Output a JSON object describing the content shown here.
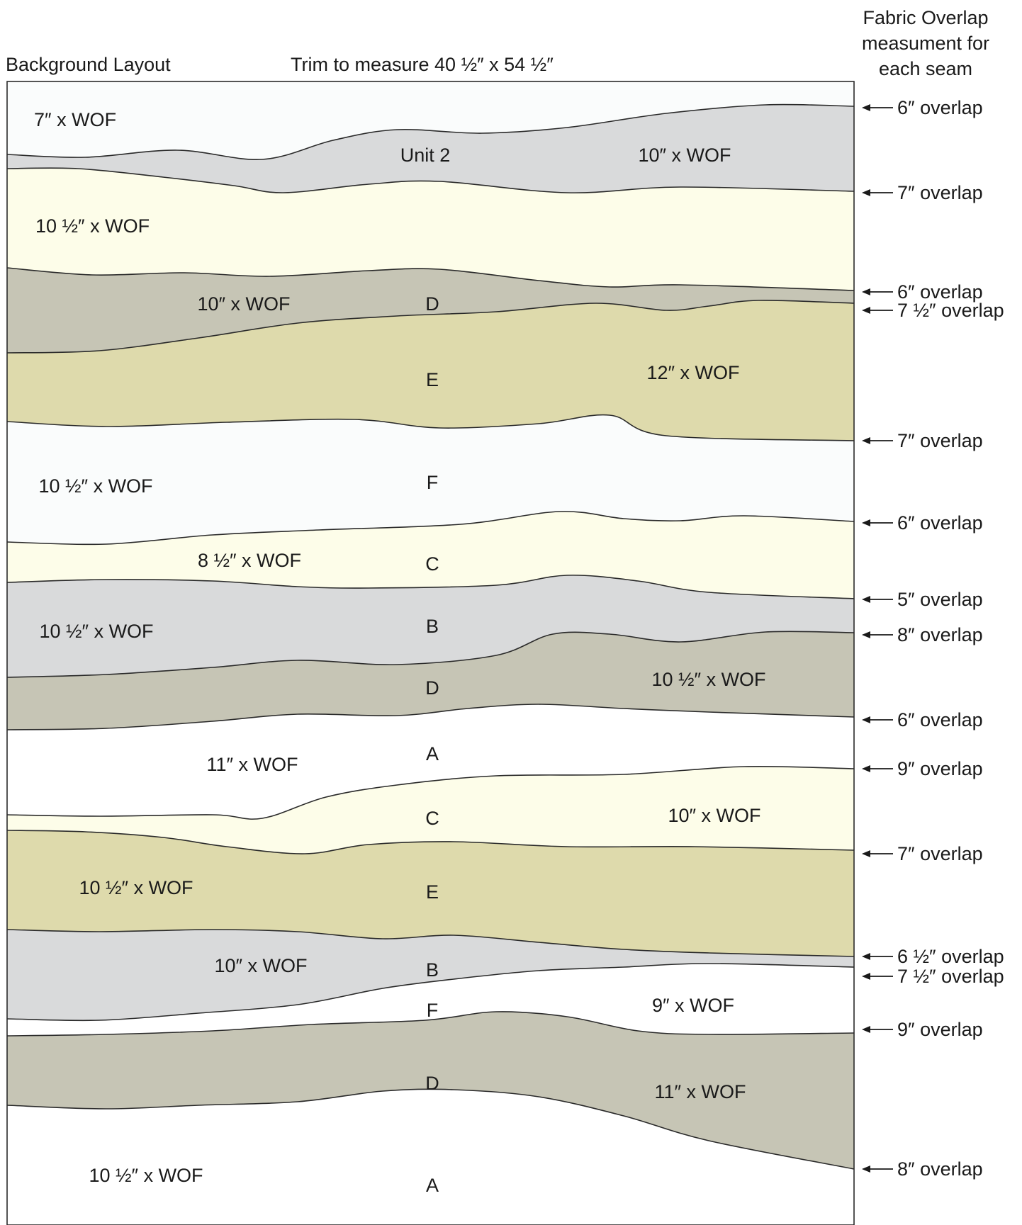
{
  "header": {
    "left_title": "Background Layout",
    "center_title": "Trim to measure 40 ½″ x 54 ½″",
    "right_title_lines": [
      "Fabric Overlap",
      "measument for",
      "each seam"
    ]
  },
  "colors": {
    "white": "#ffffff",
    "very_light_blue": "#fafcfc",
    "light_gray": "#d9dadb",
    "cream": "#fdfde9",
    "taupe": "#c6c5b5",
    "khaki": "#dedaac",
    "outline": "#2a2a2a"
  },
  "strips": [
    {
      "color": "very_light_blue",
      "labels": [
        "7″ x WOF"
      ]
    },
    {
      "color": "light_gray",
      "labels": [
        "Unit 2",
        "10″ x WOF"
      ]
    },
    {
      "color": "cream",
      "labels": [
        "10 ½″ x WOF"
      ]
    },
    {
      "color": "taupe",
      "labels": [
        "10″ x WOF",
        "D"
      ]
    },
    {
      "color": "khaki",
      "labels": [
        "E",
        "12″ x WOF"
      ]
    },
    {
      "color": "very_light_blue",
      "labels": [
        "10 ½″ x WOF",
        "F"
      ]
    },
    {
      "color": "cream",
      "labels": [
        "8 ½″ x WOF",
        "C"
      ]
    },
    {
      "color": "light_gray",
      "labels": [
        "10 ½″ x WOF",
        "B"
      ]
    },
    {
      "color": "taupe",
      "labels": [
        "D",
        "10 ½″ x WOF"
      ]
    },
    {
      "color": "white",
      "labels": [
        "11″ x WOF",
        "A"
      ]
    },
    {
      "color": "cream",
      "labels": [
        "C",
        "10″ x WOF"
      ]
    },
    {
      "color": "khaki",
      "labels": [
        "10 ½″ x WOF",
        "E"
      ]
    },
    {
      "color": "light_gray",
      "labels": [
        "10″ x WOF",
        "B"
      ]
    },
    {
      "color": "white",
      "labels": [
        "F",
        "9″ x WOF"
      ]
    },
    {
      "color": "taupe",
      "labels": [
        "D",
        "11″ x WOF"
      ]
    },
    {
      "color": "white",
      "labels": [
        "10 ½″ x WOF",
        "A"
      ]
    }
  ],
  "overlaps": [
    "6″ overlap",
    "7″ overlap",
    "6″ overlap",
    "7 ½″ overlap",
    "7″ overlap",
    "6″ overlap",
    "5″ overlap",
    "8″ overlap",
    "6″ overlap",
    "9″ overlap",
    "7″ overlap",
    "6 ½″ overlap",
    "7 ½″ overlap",
    "9″ overlap",
    "8″ overlap"
  ]
}
